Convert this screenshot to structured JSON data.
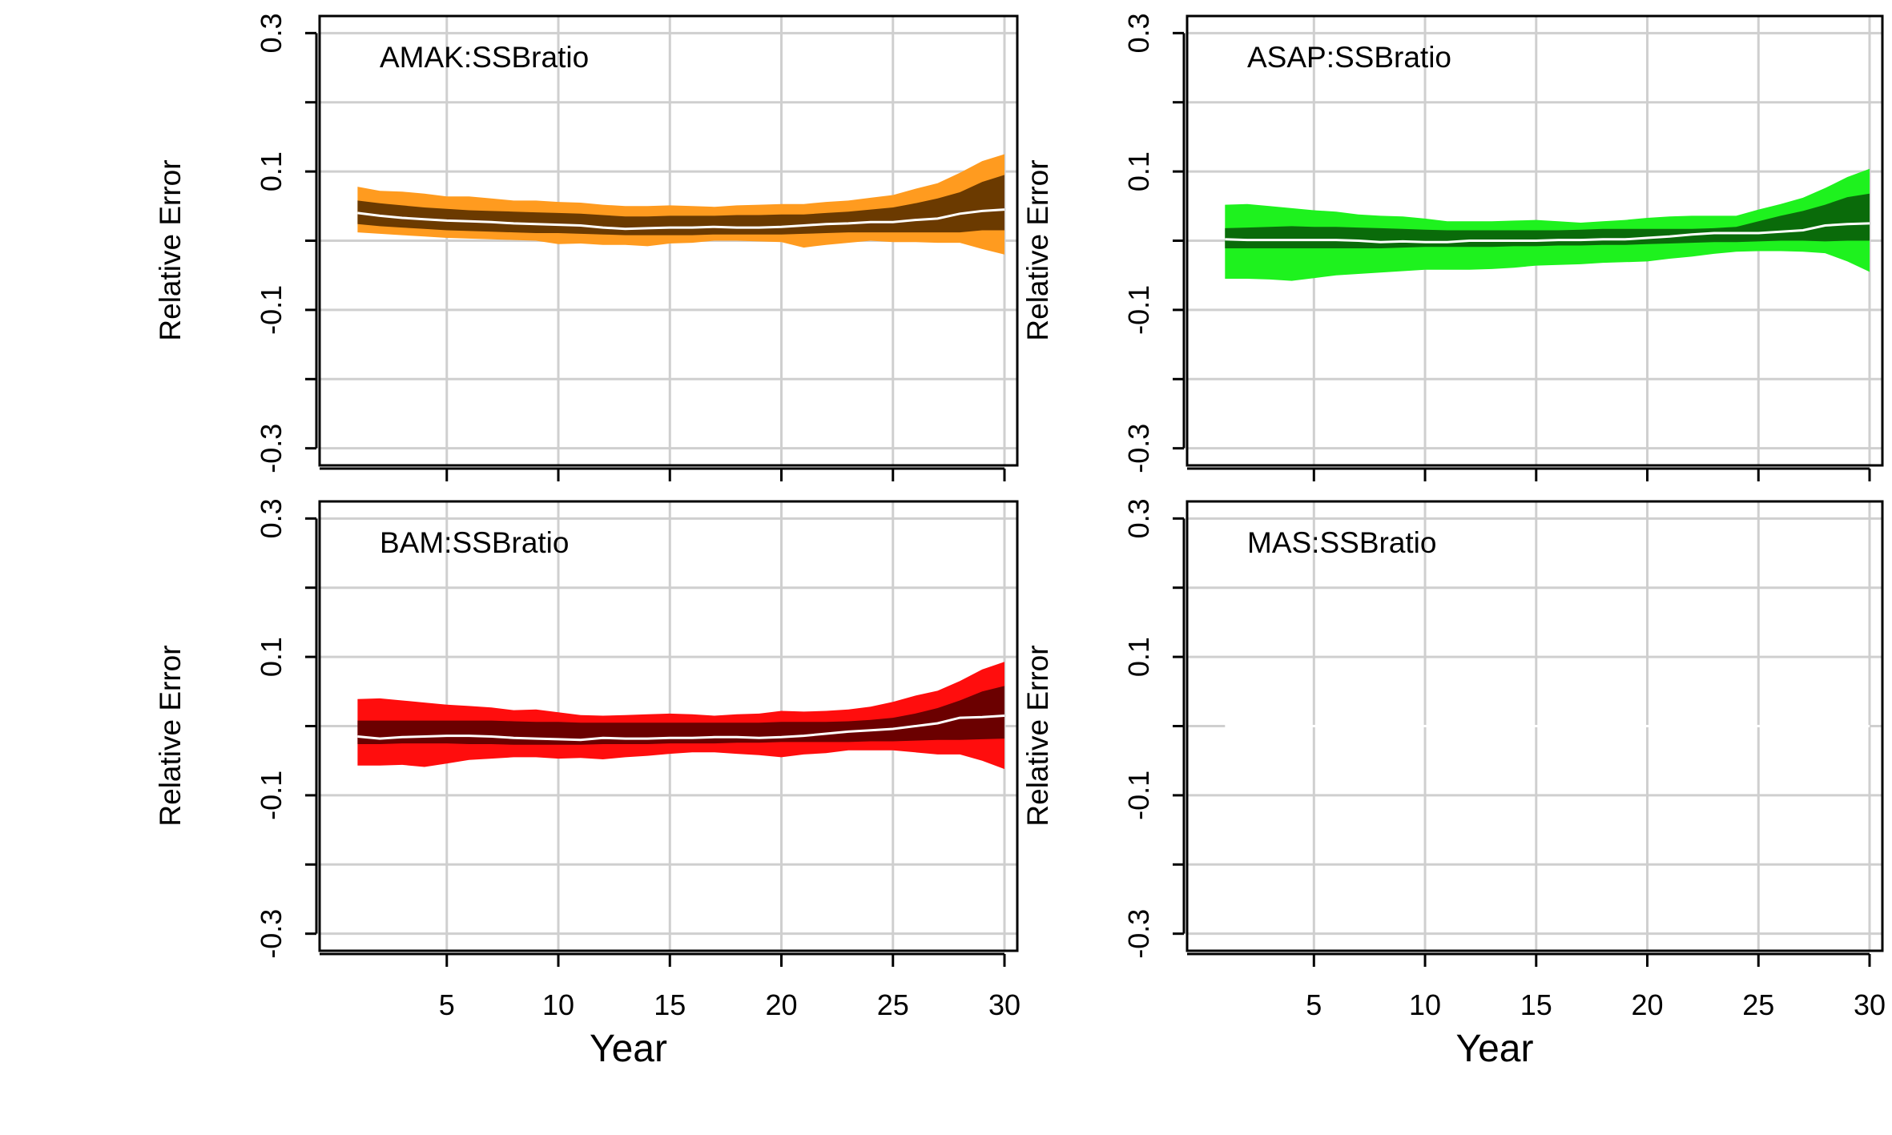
{
  "chart_data": [
    {
      "type": "area",
      "title": "AMAK:SSBratio",
      "xlabel": "",
      "ylabel": "Relative Error",
      "xlim": [
        0,
        31
      ],
      "ylim": [
        -0.3,
        0.3
      ],
      "x_ticks": [
        "5",
        "10",
        "15",
        "20",
        "25",
        "30"
      ],
      "y_ticks": [
        "-0.3",
        "-0.1",
        "0.1",
        "0.3"
      ],
      "grid": true,
      "colors": {
        "outer": "#FF9B1F",
        "inner": "#6B3A00",
        "median": "#FFFFFF"
      },
      "x": [
        1,
        2,
        3,
        4,
        5,
        6,
        7,
        8,
        9,
        10,
        11,
        12,
        13,
        14,
        15,
        16,
        17,
        18,
        19,
        20,
        21,
        22,
        23,
        24,
        25,
        26,
        27,
        28,
        29,
        30
      ],
      "outer_upper": [
        0.078,
        0.072,
        0.071,
        0.068,
        0.064,
        0.064,
        0.061,
        0.058,
        0.058,
        0.056,
        0.055,
        0.052,
        0.05,
        0.05,
        0.051,
        0.05,
        0.049,
        0.051,
        0.052,
        0.053,
        0.053,
        0.056,
        0.058,
        0.062,
        0.066,
        0.075,
        0.083,
        0.098,
        0.115,
        0.125
      ],
      "inner_upper": [
        0.058,
        0.054,
        0.051,
        0.048,
        0.046,
        0.044,
        0.043,
        0.042,
        0.041,
        0.04,
        0.039,
        0.037,
        0.035,
        0.035,
        0.036,
        0.036,
        0.036,
        0.037,
        0.037,
        0.038,
        0.038,
        0.04,
        0.042,
        0.045,
        0.048,
        0.054,
        0.061,
        0.07,
        0.085,
        0.095
      ],
      "median": [
        0.04,
        0.036,
        0.033,
        0.031,
        0.029,
        0.028,
        0.027,
        0.025,
        0.024,
        0.023,
        0.022,
        0.019,
        0.017,
        0.018,
        0.019,
        0.019,
        0.02,
        0.019,
        0.019,
        0.02,
        0.022,
        0.024,
        0.025,
        0.027,
        0.027,
        0.03,
        0.032,
        0.039,
        0.043,
        0.045
      ],
      "inner_lower": [
        0.024,
        0.021,
        0.019,
        0.017,
        0.015,
        0.014,
        0.013,
        0.012,
        0.011,
        0.011,
        0.01,
        0.009,
        0.008,
        0.008,
        0.008,
        0.008,
        0.009,
        0.009,
        0.009,
        0.009,
        0.01,
        0.011,
        0.012,
        0.012,
        0.012,
        0.012,
        0.012,
        0.012,
        0.015,
        0.015
      ],
      "outer_lower": [
        0.012,
        0.01,
        0.008,
        0.006,
        0.004,
        0.003,
        0.002,
        0.001,
        0.0,
        -0.005,
        -0.004,
        -0.006,
        -0.006,
        -0.008,
        -0.004,
        -0.003,
        0.0,
        0.0,
        -0.001,
        -0.002,
        -0.01,
        -0.006,
        -0.003,
        0.0,
        -0.002,
        -0.002,
        -0.003,
        -0.003,
        -0.012,
        -0.02
      ]
    },
    {
      "type": "area",
      "title": "ASAP:SSBratio",
      "xlabel": "",
      "ylabel": "Relative Error",
      "xlim": [
        0,
        31
      ],
      "ylim": [
        -0.3,
        0.3
      ],
      "x_ticks": [
        "5",
        "10",
        "15",
        "20",
        "25",
        "30"
      ],
      "y_ticks": [
        "-0.3",
        "-0.1",
        "0.1",
        "0.3"
      ],
      "grid": true,
      "colors": {
        "outer": "#1EF21E",
        "inner": "#0A6B0A",
        "median": "#FFFFFF"
      },
      "x": [
        1,
        2,
        3,
        4,
        5,
        6,
        7,
        8,
        9,
        10,
        11,
        12,
        13,
        14,
        15,
        16,
        17,
        18,
        19,
        20,
        21,
        22,
        23,
        24,
        25,
        26,
        27,
        28,
        29,
        30
      ],
      "outer_upper": [
        0.052,
        0.053,
        0.05,
        0.047,
        0.044,
        0.042,
        0.038,
        0.036,
        0.035,
        0.032,
        0.028,
        0.028,
        0.028,
        0.029,
        0.03,
        0.028,
        0.026,
        0.028,
        0.03,
        0.033,
        0.035,
        0.036,
        0.036,
        0.036,
        0.045,
        0.053,
        0.062,
        0.076,
        0.092,
        0.104
      ],
      "inner_upper": [
        0.018,
        0.019,
        0.02,
        0.021,
        0.02,
        0.02,
        0.019,
        0.018,
        0.017,
        0.016,
        0.015,
        0.015,
        0.015,
        0.015,
        0.015,
        0.015,
        0.016,
        0.017,
        0.017,
        0.017,
        0.017,
        0.017,
        0.018,
        0.02,
        0.028,
        0.036,
        0.043,
        0.052,
        0.063,
        0.068
      ],
      "median": [
        0.002,
        0.001,
        0.001,
        0.001,
        0.001,
        0.001,
        0.0,
        -0.002,
        -0.001,
        -0.002,
        -0.002,
        0.0,
        0.0,
        0.0,
        0.0,
        0.001,
        0.001,
        0.002,
        0.002,
        0.004,
        0.006,
        0.009,
        0.011,
        0.011,
        0.011,
        0.013,
        0.015,
        0.022,
        0.024,
        0.025
      ],
      "inner_lower": [
        -0.011,
        -0.011,
        -0.011,
        -0.011,
        -0.011,
        -0.011,
        -0.011,
        -0.011,
        -0.01,
        -0.009,
        -0.009,
        -0.009,
        -0.009,
        -0.008,
        -0.008,
        -0.007,
        -0.007,
        -0.006,
        -0.006,
        -0.005,
        -0.004,
        -0.003,
        -0.002,
        -0.002,
        -0.001,
        0.0,
        0.0,
        -0.001,
        0.0,
        0.0
      ],
      "outer_lower": [
        -0.055,
        -0.055,
        -0.056,
        -0.058,
        -0.054,
        -0.05,
        -0.048,
        -0.046,
        -0.044,
        -0.042,
        -0.042,
        -0.042,
        -0.041,
        -0.039,
        -0.036,
        -0.035,
        -0.034,
        -0.032,
        -0.031,
        -0.03,
        -0.026,
        -0.023,
        -0.019,
        -0.016,
        -0.015,
        -0.015,
        -0.016,
        -0.018,
        -0.03,
        -0.045
      ]
    },
    {
      "type": "area",
      "title": "BAM:SSBratio",
      "xlabel": "Year",
      "ylabel": "Relative Error",
      "xlim": [
        0,
        31
      ],
      "ylim": [
        -0.3,
        0.3
      ],
      "x_ticks": [
        "5",
        "10",
        "15",
        "20",
        "25",
        "30"
      ],
      "y_ticks": [
        "-0.3",
        "-0.1",
        "0.1",
        "0.3"
      ],
      "grid": true,
      "colors": {
        "outer": "#FF0D0D",
        "inner": "#6B0000",
        "median": "#FFFFFF"
      },
      "x": [
        1,
        2,
        3,
        4,
        5,
        6,
        7,
        8,
        9,
        10,
        11,
        12,
        13,
        14,
        15,
        16,
        17,
        18,
        19,
        20,
        21,
        22,
        23,
        24,
        25,
        26,
        27,
        28,
        29,
        30
      ],
      "outer_upper": [
        0.039,
        0.04,
        0.037,
        0.034,
        0.031,
        0.029,
        0.027,
        0.023,
        0.024,
        0.02,
        0.016,
        0.015,
        0.016,
        0.017,
        0.018,
        0.017,
        0.015,
        0.017,
        0.018,
        0.022,
        0.021,
        0.022,
        0.024,
        0.028,
        0.035,
        0.044,
        0.051,
        0.065,
        0.082,
        0.093
      ],
      "inner_upper": [
        0.008,
        0.008,
        0.008,
        0.008,
        0.008,
        0.008,
        0.008,
        0.007,
        0.006,
        0.006,
        0.005,
        0.005,
        0.005,
        0.005,
        0.005,
        0.005,
        0.005,
        0.005,
        0.005,
        0.006,
        0.006,
        0.006,
        0.007,
        0.009,
        0.012,
        0.018,
        0.026,
        0.037,
        0.05,
        0.058
      ],
      "median": [
        -0.015,
        -0.018,
        -0.016,
        -0.015,
        -0.014,
        -0.014,
        -0.015,
        -0.017,
        -0.018,
        -0.019,
        -0.02,
        -0.017,
        -0.018,
        -0.018,
        -0.017,
        -0.017,
        -0.016,
        -0.016,
        -0.017,
        -0.016,
        -0.014,
        -0.011,
        -0.008,
        -0.006,
        -0.004,
        0.0,
        0.004,
        0.012,
        0.013,
        0.015
      ],
      "inner_lower": [
        -0.026,
        -0.026,
        -0.025,
        -0.025,
        -0.025,
        -0.026,
        -0.026,
        -0.027,
        -0.027,
        -0.027,
        -0.027,
        -0.026,
        -0.026,
        -0.026,
        -0.025,
        -0.025,
        -0.025,
        -0.024,
        -0.024,
        -0.023,
        -0.023,
        -0.023,
        -0.023,
        -0.022,
        -0.022,
        -0.021,
        -0.02,
        -0.02,
        -0.019,
        -0.018
      ],
      "outer_lower": [
        -0.057,
        -0.057,
        -0.056,
        -0.059,
        -0.054,
        -0.049,
        -0.047,
        -0.045,
        -0.045,
        -0.047,
        -0.046,
        -0.048,
        -0.045,
        -0.043,
        -0.04,
        -0.038,
        -0.038,
        -0.04,
        -0.042,
        -0.045,
        -0.041,
        -0.039,
        -0.035,
        -0.035,
        -0.035,
        -0.038,
        -0.041,
        -0.041,
        -0.05,
        -0.062
      ]
    },
    {
      "type": "area",
      "title": "MAS:SSBratio",
      "xlabel": "Year",
      "ylabel": "Relative Error",
      "xlim": [
        0,
        31
      ],
      "ylim": [
        -0.3,
        0.3
      ],
      "x_ticks": [
        "5",
        "10",
        "15",
        "20",
        "25",
        "30"
      ],
      "y_ticks": [
        "-0.3",
        "-0.1",
        "0.1",
        "0.3"
      ],
      "grid": true,
      "colors": {
        "outer": "#FFFFFF",
        "inner": "#FFFFFF",
        "median": "#FFFFFF"
      },
      "x": [
        1,
        2,
        3,
        4,
        5,
        6,
        7,
        8,
        9,
        10,
        11,
        12,
        13,
        14,
        15,
        16,
        17,
        18,
        19,
        20,
        21,
        22,
        23,
        24,
        25,
        26,
        27,
        28,
        29,
        30
      ],
      "outer_upper": [
        0,
        0,
        0,
        0,
        0,
        0,
        0,
        0,
        0,
        0,
        0,
        0,
        0,
        0,
        0,
        0,
        0,
        0,
        0,
        0,
        0,
        0,
        0,
        0,
        0,
        0,
        0,
        0,
        0,
        0
      ],
      "inner_upper": [
        0,
        0,
        0,
        0,
        0,
        0,
        0,
        0,
        0,
        0,
        0,
        0,
        0,
        0,
        0,
        0,
        0,
        0,
        0,
        0,
        0,
        0,
        0,
        0,
        0,
        0,
        0,
        0,
        0,
        0
      ],
      "median": [
        0,
        0,
        0,
        0,
        0,
        0,
        0,
        0,
        0,
        0,
        0,
        0,
        0,
        0,
        0,
        0,
        0,
        0,
        0,
        0,
        0,
        0,
        0,
        0,
        0,
        0,
        0,
        0,
        0,
        0
      ],
      "inner_lower": [
        0,
        0,
        0,
        0,
        0,
        0,
        0,
        0,
        0,
        0,
        0,
        0,
        0,
        0,
        0,
        0,
        0,
        0,
        0,
        0,
        0,
        0,
        0,
        0,
        0,
        0,
        0,
        0,
        0,
        0
      ],
      "outer_lower": [
        0,
        0,
        0,
        0,
        0,
        0,
        0,
        0,
        0,
        0,
        0,
        0,
        0,
        0,
        0,
        0,
        0,
        0,
        0,
        0,
        0,
        0,
        0,
        0,
        0,
        0,
        0,
        0,
        0,
        0
      ]
    }
  ]
}
